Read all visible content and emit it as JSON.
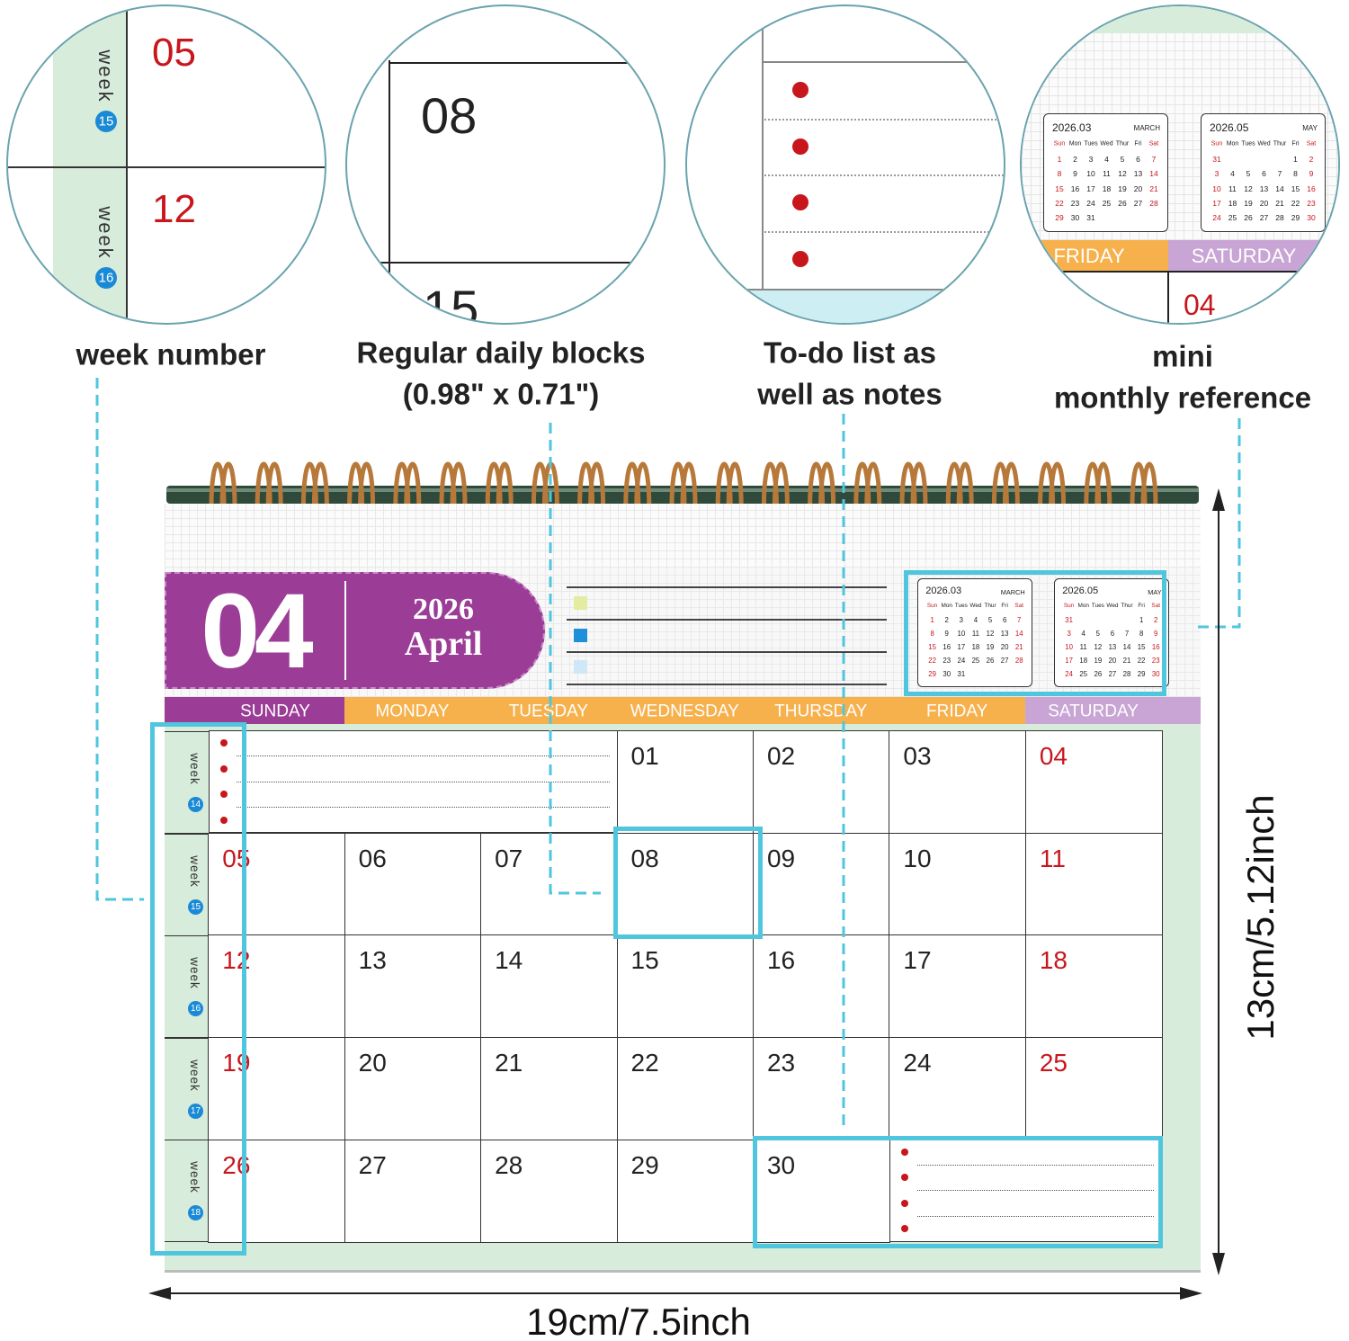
{
  "callouts": {
    "week_number": "week number",
    "daily_blocks": [
      "Regular daily blocks",
      "(0.98\" x 0.71\")"
    ],
    "todo": [
      "To-do list as",
      "well as notes"
    ],
    "mini": [
      "mini",
      "monthly reference"
    ]
  },
  "calendar": {
    "month_number": "04",
    "year": "2026",
    "month_name": "April",
    "weekdays": [
      "SUNDAY",
      "MONDAY",
      "TUESDAY",
      "WEDNESDAY",
      "THURSDAY",
      "FRIDAY",
      "SATURDAY"
    ],
    "week_label": "week",
    "weeks": [
      "14",
      "15",
      "16",
      "17",
      "18"
    ],
    "days": [
      [
        null,
        null,
        null,
        "01",
        "02",
        "03",
        "04"
      ],
      [
        "05",
        "06",
        "07",
        "08",
        "09",
        "10",
        "11"
      ],
      [
        "12",
        "13",
        "14",
        "15",
        "16",
        "17",
        "18"
      ],
      [
        "19",
        "20",
        "21",
        "22",
        "23",
        "24",
        "25"
      ],
      [
        "26",
        "27",
        "28",
        "29",
        "30",
        null,
        null
      ]
    ]
  },
  "mini_weekdays": [
    "Sun",
    "Mon",
    "Tues",
    "Wed",
    "Thur",
    "Fri",
    "Sat"
  ],
  "mini_calendars": [
    {
      "title": "2026.03",
      "month": "MARCH",
      "rows": [
        [
          1,
          2,
          3,
          4,
          5,
          6,
          7
        ],
        [
          8,
          9,
          10,
          11,
          12,
          13,
          14
        ],
        [
          15,
          16,
          17,
          18,
          19,
          20,
          21
        ],
        [
          22,
          23,
          24,
          25,
          26,
          27,
          28
        ],
        [
          29,
          30,
          31,
          null,
          null,
          null,
          null
        ]
      ]
    },
    {
      "title": "2026.05",
      "month": "MAY",
      "rows": [
        [
          31,
          null,
          null,
          null,
          null,
          1,
          2
        ],
        [
          3,
          4,
          5,
          6,
          7,
          8,
          9
        ],
        [
          10,
          11,
          12,
          13,
          14,
          15,
          16
        ],
        [
          17,
          18,
          19,
          20,
          21,
          22,
          23
        ],
        [
          24,
          25,
          26,
          27,
          28,
          29,
          30
        ]
      ]
    }
  ],
  "dimensions": {
    "width": "19cm/7.5inch",
    "height": "13cm/5.12inch"
  }
}
